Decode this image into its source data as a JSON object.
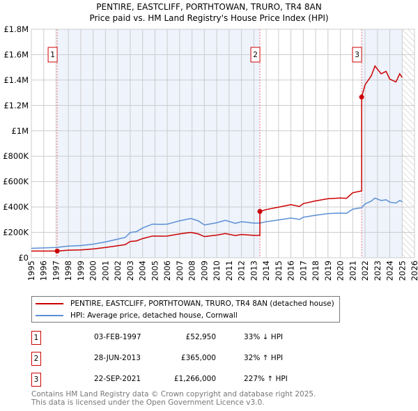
{
  "chart_data": {
    "type": "line",
    "title": "PENTIRE, EASTCLIFF, PORTHTOWAN, TRURO, TR4 8AN",
    "subtitle": "Price paid vs. HM Land Registry's House Price Index (HPI)",
    "xlim": [
      1995,
      2026
    ],
    "ylim": [
      0,
      1800000
    ],
    "y_ticks": [
      {
        "v": 0,
        "label": "£0"
      },
      {
        "v": 200000,
        "label": "£200K"
      },
      {
        "v": 400000,
        "label": "£400K"
      },
      {
        "v": 600000,
        "label": "£600K"
      },
      {
        "v": 800000,
        "label": "£800K"
      },
      {
        "v": 1000000,
        "label": "£1M"
      },
      {
        "v": 1200000,
        "label": "£1.2M"
      },
      {
        "v": 1400000,
        "label": "£1.4M"
      },
      {
        "v": 1600000,
        "label": "£1.6M"
      },
      {
        "v": 1800000,
        "label": "£1.8M"
      }
    ],
    "x_ticks": [
      "1995",
      "1996",
      "1997",
      "1998",
      "1999",
      "2000",
      "2001",
      "2002",
      "2003",
      "2004",
      "2005",
      "2006",
      "2007",
      "2008",
      "2009",
      "2010",
      "2011",
      "2012",
      "2013",
      "2014",
      "2015",
      "2016",
      "2017",
      "2018",
      "2019",
      "2020",
      "2021",
      "2022",
      "2023",
      "2024",
      "2025",
      "2026"
    ],
    "grid": true,
    "series": [
      {
        "name": "PENTIRE, EASTCLIFF, PORTHTOWAN, TRURO, TR4 8AN (detached house)",
        "color": "#cc0000"
      },
      {
        "name": "HPI: Average price, detached house, Cornwall",
        "color": "#5b8fd4",
        "x": [
          1995,
          1997,
          1998,
          1999,
          2000,
          2001,
          2002,
          2002.6,
          2003,
          2003.5,
          2004,
          2004.8,
          2005.5,
          2006,
          2007,
          2007.9,
          2008.5,
          2009,
          2010,
          2010.7,
          2011.5,
          2012,
          2013,
          2013.5,
          2014,
          2015,
          2016,
          2016.7,
          2017,
          2018,
          2019,
          2020,
          2020.5,
          2021,
          2021.72,
          2022,
          2022.5,
          2022.8,
          2023.3,
          2023.7,
          2024,
          2024.5,
          2024.8,
          2025
        ],
        "y": [
          74000,
          81000,
          92000,
          96000,
          107000,
          125000,
          147000,
          160000,
          199000,
          205000,
          234000,
          265000,
          263000,
          265000,
          291000,
          309000,
          291000,
          258000,
          276000,
          295000,
          271000,
          284000,
          273000,
          273000,
          284000,
          298000,
          313000,
          302000,
          319000,
          335000,
          348000,
          352000,
          350000,
          383000,
          394000,
          424000,
          446000,
          470000,
          451000,
          457000,
          438000,
          431000,
          451000,
          442000
        ]
      }
    ],
    "sales": [
      {
        "num": "1",
        "x": 1997.09,
        "price": 52950,
        "date": "03-FEB-1997",
        "price_label": "£52,950",
        "hpi": "33% ↓ HPI"
      },
      {
        "num": "2",
        "x": 2013.49,
        "price": 365000,
        "date": "28-JUN-2013",
        "price_label": "£365,000",
        "hpi": "32% ↑ HPI"
      },
      {
        "num": "3",
        "x": 2021.72,
        "price": 1266000,
        "date": "22-SEP-2021",
        "price_label": "£1,266,000",
        "hpi": "227% ↑ HPI"
      }
    ],
    "forecast_start": 2025.0,
    "colors": {
      "shade": "#eef3fc",
      "grid": "#cccccc",
      "marker_border": "#cc0000"
    }
  },
  "footer": {
    "line1": "Contains HM Land Registry data © Crown copyright and database right 2025.",
    "line2": "This data is licensed under the Open Government Licence v3.0."
  }
}
